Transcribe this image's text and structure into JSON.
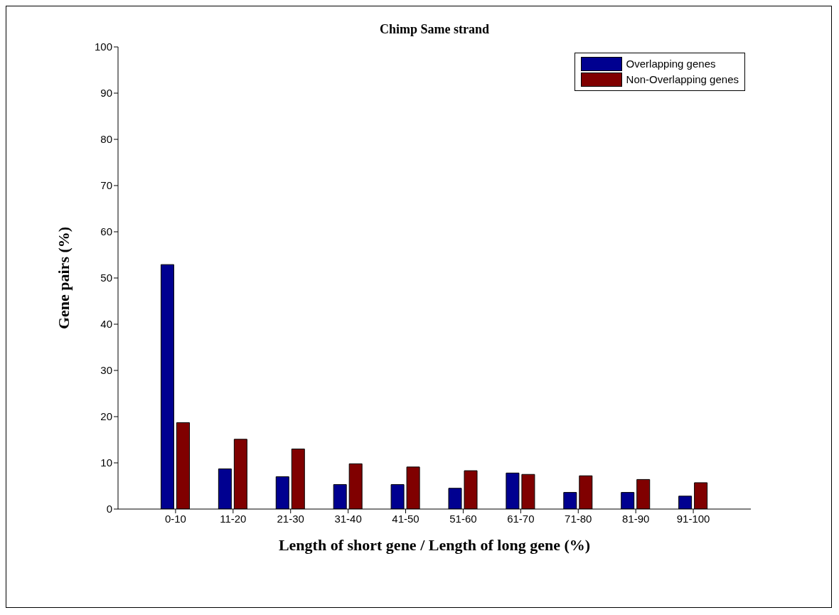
{
  "chart_data": {
    "type": "bar",
    "title": "Chimp Same strand",
    "xlabel": "Length of short gene / Length of long gene (%)",
    "ylabel": "Gene pairs (%)",
    "categories": [
      "0-10",
      "11-20",
      "21-30",
      "31-40",
      "41-50",
      "51-60",
      "61-70",
      "71-80",
      "81-90",
      "91-100"
    ],
    "series": [
      {
        "name": "Overlapping genes",
        "color": "#000090",
        "values": [
          52.9,
          8.7,
          7.0,
          5.3,
          5.3,
          4.5,
          7.8,
          3.6,
          3.6,
          2.8
        ]
      },
      {
        "name": "Non-Overlapping genes",
        "color": "#800000",
        "values": [
          18.7,
          15.1,
          13.0,
          9.8,
          9.1,
          8.3,
          7.5,
          7.2,
          6.4,
          5.7
        ]
      }
    ],
    "ylim": [
      0,
      100
    ],
    "yticks": [
      0,
      10,
      20,
      30,
      40,
      50,
      60,
      70,
      80,
      90,
      100
    ],
    "grid": false,
    "legend": "top right"
  }
}
